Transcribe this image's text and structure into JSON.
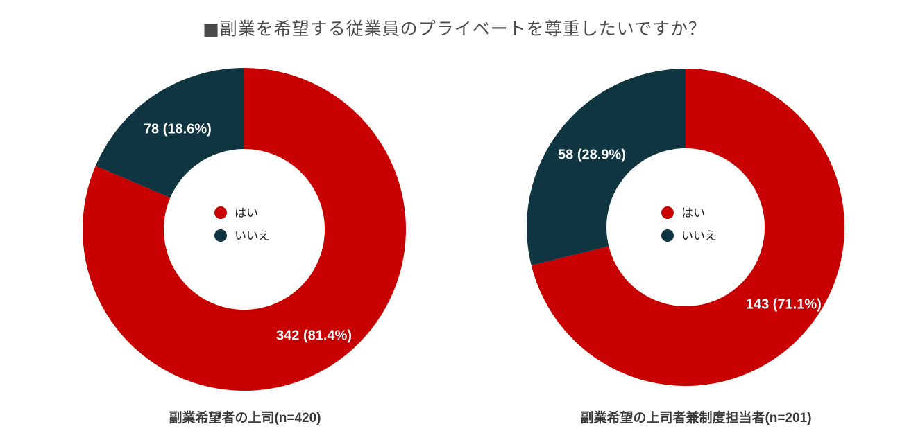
{
  "title": "■副業を希望する従業員のプライベートを尊重したいですか？",
  "colors": {
    "yes": "#c80000",
    "no": "#0e3540"
  },
  "chart_data": [
    {
      "type": "pie",
      "donut": true,
      "caption": "副業希望者の上司(n=420)",
      "legend_position": "center",
      "slices": [
        {
          "label": "はい",
          "value": 342,
          "percent": 81.4,
          "data_label": "342 (81.4%)",
          "color": "#c80000"
        },
        {
          "label": "いいえ",
          "value": 78,
          "percent": 18.6,
          "data_label": "78 (18.6%)",
          "color": "#0e3540"
        }
      ]
    },
    {
      "type": "pie",
      "donut": true,
      "caption": "副業希望の上司者兼制度担当者(n=201)",
      "legend_position": "center",
      "slices": [
        {
          "label": "はい",
          "value": 143,
          "percent": 71.1,
          "data_label": "143 (71.1%)",
          "color": "#c80000"
        },
        {
          "label": "いいえ",
          "value": 58,
          "percent": 28.9,
          "data_label": "58 (28.9%)",
          "color": "#0e3540"
        }
      ]
    }
  ]
}
